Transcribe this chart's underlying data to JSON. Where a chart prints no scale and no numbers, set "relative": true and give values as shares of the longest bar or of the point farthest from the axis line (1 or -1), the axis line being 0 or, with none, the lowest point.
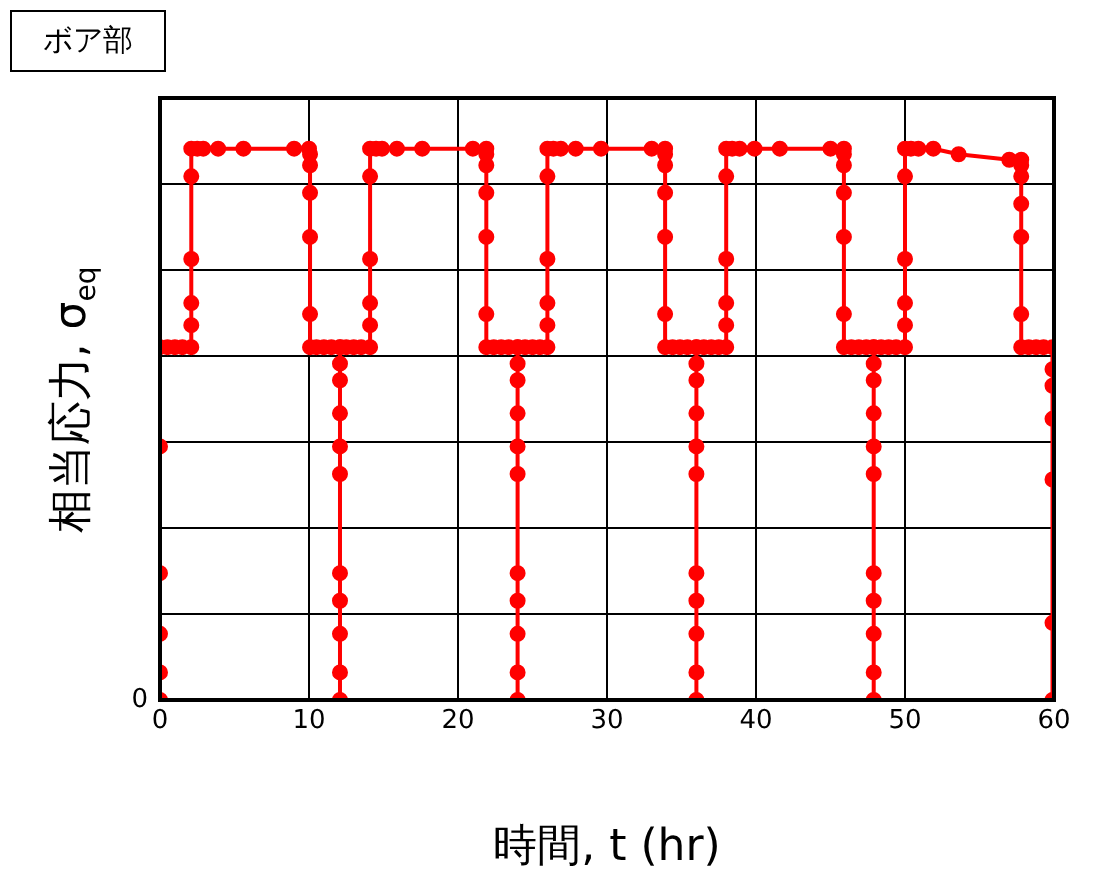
{
  "chart_data": {
    "type": "line",
    "title": "ボア部",
    "xlabel": "時間, t (hr)",
    "ylabel": "相当応力, σ$_{eq}$",
    "relative": true,
    "xlim": [
      0,
      60
    ],
    "xticks": [
      0,
      10,
      20,
      30,
      40,
      50,
      60
    ],
    "annotations": [
      {
        "text": "0",
        "x": 0,
        "y": 0
      }
    ],
    "grid": true,
    "legend": false,
    "marker": "circle",
    "line_style": "solid",
    "series": [
      {
        "color": "#ff0000",
        "x": [
          0,
          0,
          0,
          0,
          0,
          0,
          0.5,
          1,
          1.5,
          2.1,
          2.1,
          2.1,
          2.1,
          2.1,
          2.1,
          2.5,
          2.9,
          3.9,
          5.6,
          9.0,
          10.0,
          10.07,
          10.07,
          10.07,
          10.07,
          10.07,
          10.07,
          10.5,
          11,
          11.5,
          12.08,
          12.08,
          12.08,
          12.08,
          12.08,
          12.08,
          12.08,
          12.08,
          12.08,
          12.08,
          12.08,
          12.08,
          12.5,
          13,
          13.5,
          14.1,
          14.1,
          14.1,
          14.1,
          14.1,
          14.1,
          14.5,
          14.9,
          15.9,
          17.6,
          21.0,
          21.9,
          21.9,
          21.9,
          21.9,
          21.9,
          21.9,
          21.9,
          22.4,
          22.9,
          23.4,
          24.0,
          24.0,
          24.0,
          24.0,
          24.0,
          24.0,
          24.0,
          24.0,
          24.0,
          24.0,
          24.0,
          24.0,
          24.5,
          25,
          25.5,
          26.0,
          26.0,
          26.0,
          26.0,
          26.0,
          26.0,
          26.4,
          26.9,
          27.9,
          29.6,
          33.0,
          33.9,
          33.9,
          33.9,
          33.9,
          33.9,
          33.9,
          33.9,
          34.4,
          34.9,
          35.4,
          36.0,
          36.0,
          36.0,
          36.0,
          36.0,
          36.0,
          36.0,
          36.0,
          36.0,
          36.0,
          36.0,
          36.0,
          36.5,
          37,
          37.5,
          38.0,
          38.0,
          38.0,
          38.0,
          38.0,
          38.0,
          38.4,
          38.9,
          39.9,
          41.6,
          45.0,
          45.9,
          45.9,
          45.9,
          45.9,
          45.9,
          45.9,
          45.9,
          46.4,
          46.9,
          47.4,
          47.9,
          47.9,
          47.9,
          47.9,
          47.9,
          47.9,
          47.9,
          47.9,
          47.9,
          47.9,
          47.9,
          47.9,
          48.4,
          48.9,
          49.4,
          50.0,
          50.0,
          50.0,
          50.0,
          50.0,
          50.0,
          50.4,
          50.9,
          51.9,
          53.6,
          57.0,
          57.8,
          57.8,
          57.8,
          57.8,
          57.8,
          57.8,
          57.8,
          58.3,
          58.8,
          59.3,
          59.9,
          59.9,
          59.9,
          59.9,
          59.9,
          59.9,
          59.9
        ],
        "values": [
          0,
          0.05,
          0.12,
          0.23,
          0.46,
          0.64,
          0.64,
          0.64,
          0.64,
          0.64,
          0.68,
          0.72,
          0.8,
          0.95,
          1,
          1,
          1,
          1,
          1,
          1,
          1,
          0.99,
          0.97,
          0.92,
          0.84,
          0.7,
          0.64,
          0.64,
          0.64,
          0.64,
          0.64,
          0.61,
          0.58,
          0.52,
          0.46,
          0.41,
          0.23,
          0.18,
          0.12,
          0.05,
          0,
          0.64,
          0.64,
          0.64,
          0.64,
          0.64,
          0.68,
          0.72,
          0.8,
          0.95,
          1,
          1,
          1,
          1,
          1,
          1,
          1,
          0.99,
          0.97,
          0.92,
          0.84,
          0.7,
          0.64,
          0.64,
          0.64,
          0.64,
          0.64,
          0.61,
          0.58,
          0.52,
          0.46,
          0.41,
          0.23,
          0.18,
          0.12,
          0.05,
          0,
          0.64,
          0.64,
          0.64,
          0.64,
          0.64,
          0.68,
          0.72,
          0.8,
          0.95,
          1,
          1,
          1,
          1,
          1,
          1,
          1,
          0.99,
          0.97,
          0.92,
          0.84,
          0.7,
          0.64,
          0.64,
          0.64,
          0.64,
          0.64,
          0.61,
          0.58,
          0.52,
          0.46,
          0.41,
          0.23,
          0.18,
          0.12,
          0.05,
          0,
          0.64,
          0.64,
          0.64,
          0.64,
          0.64,
          0.68,
          0.72,
          0.8,
          0.95,
          1,
          1,
          1,
          1,
          1,
          1,
          1,
          0.99,
          0.97,
          0.92,
          0.84,
          0.7,
          0.64,
          0.64,
          0.64,
          0.64,
          0.64,
          0.61,
          0.58,
          0.52,
          0.46,
          0.41,
          0.23,
          0.18,
          0.12,
          0.05,
          0,
          0.64,
          0.64,
          0.64,
          0.64,
          0.64,
          0.68,
          0.72,
          0.8,
          0.95,
          1,
          1,
          1,
          1,
          0.99,
          0.98,
          0.98,
          0.97,
          0.95,
          0.9,
          0.84,
          0.7,
          0.64,
          0.64,
          0.64,
          0.64,
          0.64,
          0.6,
          0.57,
          0.51,
          0.4,
          0.14,
          0
        ]
      }
    ]
  }
}
